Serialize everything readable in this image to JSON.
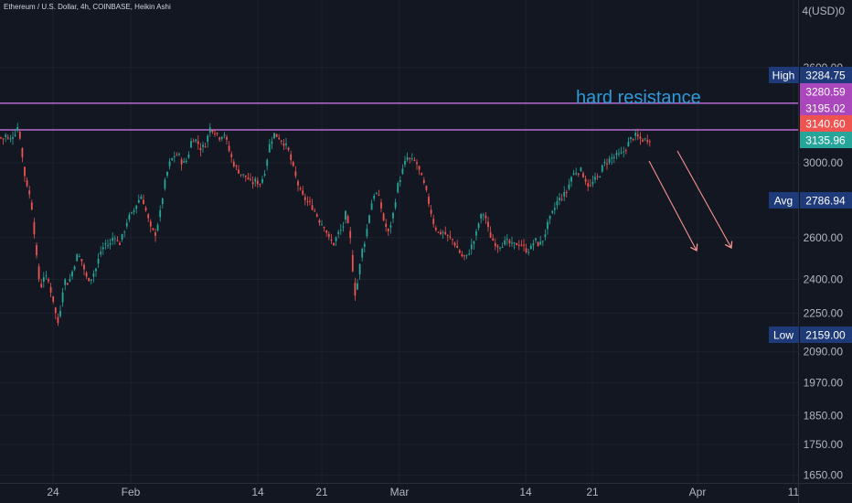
{
  "header": {
    "symbol_title": "Ethereum / U.S. Dollar, 4h, COINBASE, Heikin Ashi",
    "y_unit_label": "4(USD)0"
  },
  "colors": {
    "background": "#131722",
    "grid": "#1e222d",
    "axis_text": "#b2b5be",
    "bull": "#26a69a",
    "bear": "#ef5350",
    "resistance_line": "#d67cf0",
    "annotation_text": "#2f9ad8",
    "arrow": "#f7928e",
    "label_navy": "#1e3a78",
    "label_purple": "#ab47bc",
    "label_red": "#ef5350",
    "label_teal": "#26a69a"
  },
  "chart_data": {
    "type": "candlestick",
    "style": "Heikin Ashi",
    "interval": "4h",
    "annotation": "hard resistance",
    "x_ticks": [
      "24",
      "Feb",
      "14",
      "21",
      "Mar",
      "14",
      "21",
      "Apr",
      "11"
    ],
    "y_scale": "log",
    "y_ticks": [
      3600.0,
      3000.0,
      2600.0,
      2400.0,
      2250.0,
      2090.0,
      1970.0,
      1850.0,
      1750.0,
      1650.0
    ],
    "y_tick_labels": [
      "3600.00",
      "3000.00",
      "2600.00",
      "2400.00",
      "2250.00",
      "2090.00",
      "1970.00",
      "1850.00",
      "1750.00",
      "1650.00"
    ],
    "resistance_levels": [
      3280.59,
      3195.02
    ],
    "price_labels": [
      {
        "name": "High",
        "value": "3284.75",
        "style": "navy"
      },
      {
        "name": "",
        "value": "3280.59",
        "style": "purple"
      },
      {
        "name": "",
        "value": "3195.02",
        "style": "purple"
      },
      {
        "name": "",
        "value": "3140.60",
        "style": "red"
      },
      {
        "name": "",
        "value": "3135.96",
        "style": "teal"
      },
      {
        "name": "Avg",
        "value": "2786.94",
        "style": "navy"
      },
      {
        "name": "Low",
        "value": "2159.00",
        "style": "navy"
      }
    ],
    "price_path": [
      [
        0,
        3150
      ],
      [
        4,
        3140
      ],
      [
        7,
        3170
      ],
      [
        10,
        3115
      ],
      [
        13,
        3160
      ],
      [
        16,
        3170
      ],
      [
        19,
        3220
      ],
      [
        22,
        3150
      ],
      [
        26,
        2950
      ],
      [
        31,
        2850
      ],
      [
        35,
        2750
      ],
      [
        40,
        2500
      ],
      [
        44,
        2350
      ],
      [
        48,
        2420
      ],
      [
        53,
        2390
      ],
      [
        58,
        2310
      ],
      [
        63,
        2200
      ],
      [
        66,
        2270
      ],
      [
        70,
        2400
      ],
      [
        75,
        2380
      ],
      [
        80,
        2450
      ],
      [
        85,
        2520
      ],
      [
        90,
        2480
      ],
      [
        95,
        2400
      ],
      [
        100,
        2410
      ],
      [
        105,
        2450
      ],
      [
        110,
        2530
      ],
      [
        115,
        2570
      ],
      [
        120,
        2560
      ],
      [
        125,
        2620
      ],
      [
        130,
        2560
      ],
      [
        135,
        2620
      ],
      [
        140,
        2700
      ],
      [
        145,
        2720
      ],
      [
        150,
        2780
      ],
      [
        155,
        2820
      ],
      [
        160,
        2730
      ],
      [
        165,
        2640
      ],
      [
        170,
        2620
      ],
      [
        175,
        2720
      ],
      [
        180,
        2880
      ],
      [
        185,
        2990
      ],
      [
        190,
        3040
      ],
      [
        195,
        3050
      ],
      [
        200,
        2990
      ],
      [
        205,
        3020
      ],
      [
        210,
        3150
      ],
      [
        215,
        3130
      ],
      [
        220,
        3080
      ],
      [
        225,
        3110
      ],
      [
        230,
        3210
      ],
      [
        235,
        3190
      ],
      [
        240,
        3150
      ],
      [
        245,
        3180
      ],
      [
        250,
        3080
      ],
      [
        255,
        3000
      ],
      [
        260,
        2960
      ],
      [
        265,
        2930
      ],
      [
        270,
        2920
      ],
      [
        275,
        2880
      ],
      [
        280,
        2900
      ],
      [
        285,
        2880
      ],
      [
        290,
        2960
      ],
      [
        295,
        3110
      ],
      [
        300,
        3170
      ],
      [
        305,
        3150
      ],
      [
        310,
        3120
      ],
      [
        315,
        3080
      ],
      [
        320,
        2980
      ],
      [
        325,
        2890
      ],
      [
        330,
        2820
      ],
      [
        335,
        2790
      ],
      [
        340,
        2770
      ],
      [
        345,
        2730
      ],
      [
        350,
        2680
      ],
      [
        355,
        2660
      ],
      [
        360,
        2590
      ],
      [
        365,
        2570
      ],
      [
        370,
        2620
      ],
      [
        375,
        2650
      ],
      [
        378,
        2720
      ],
      [
        383,
        2600
      ],
      [
        388,
        2330
      ],
      [
        392,
        2400
      ],
      [
        395,
        2520
      ],
      [
        400,
        2600
      ],
      [
        405,
        2750
      ],
      [
        410,
        2840
      ],
      [
        415,
        2800
      ],
      [
        420,
        2680
      ],
      [
        425,
        2620
      ],
      [
        430,
        2720
      ],
      [
        435,
        2870
      ],
      [
        440,
        2950
      ],
      [
        445,
        3030
      ],
      [
        450,
        3010
      ],
      [
        455,
        3010
      ],
      [
        460,
        2930
      ],
      [
        465,
        2860
      ],
      [
        470,
        2760
      ],
      [
        475,
        2660
      ],
      [
        480,
        2620
      ],
      [
        485,
        2630
      ],
      [
        490,
        2600
      ],
      [
        495,
        2590
      ],
      [
        500,
        2550
      ],
      [
        505,
        2510
      ],
      [
        510,
        2500
      ],
      [
        515,
        2550
      ],
      [
        520,
        2600
      ],
      [
        525,
        2700
      ],
      [
        530,
        2730
      ],
      [
        535,
        2620
      ],
      [
        540,
        2580
      ],
      [
        545,
        2560
      ],
      [
        550,
        2570
      ],
      [
        555,
        2580
      ],
      [
        560,
        2560
      ],
      [
        565,
        2570
      ],
      [
        570,
        2570
      ],
      [
        575,
        2540
      ],
      [
        580,
        2540
      ],
      [
        585,
        2590
      ],
      [
        590,
        2560
      ],
      [
        595,
        2600
      ],
      [
        600,
        2680
      ],
      [
        605,
        2730
      ],
      [
        610,
        2790
      ],
      [
        615,
        2810
      ],
      [
        620,
        2840
      ],
      [
        625,
        2920
      ],
      [
        630,
        2950
      ],
      [
        635,
        2960
      ],
      [
        640,
        2910
      ],
      [
        645,
        2860
      ],
      [
        650,
        2900
      ],
      [
        655,
        2920
      ],
      [
        660,
        2990
      ],
      [
        665,
        3010
      ],
      [
        670,
        3030
      ],
      [
        675,
        3040
      ],
      [
        680,
        3050
      ],
      [
        685,
        3090
      ],
      [
        690,
        3140
      ],
      [
        695,
        3160
      ],
      [
        700,
        3140
      ],
      [
        705,
        3135
      ],
      [
        710,
        3140
      ]
    ],
    "projection_arrows": [
      {
        "from": {
          "date_offset": 0,
          "price": 3000
        },
        "to": {
          "date_offset": 1,
          "price": 2560
        }
      },
      {
        "from": {
          "date_offset": 0,
          "price": 3060
        },
        "to": {
          "date_offset": 1,
          "price": 2580
        }
      }
    ]
  }
}
